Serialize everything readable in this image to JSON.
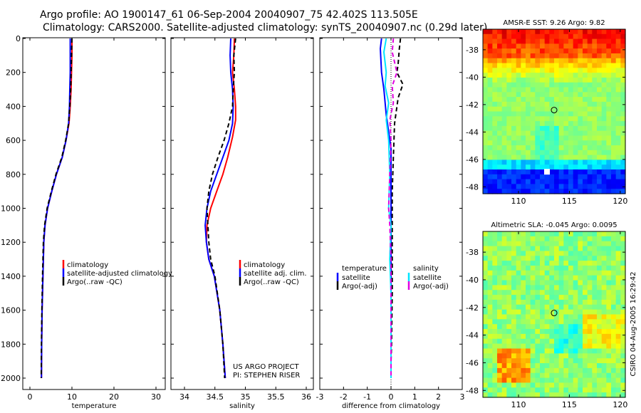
{
  "header": {
    "title_line1": "Argo profile: AO 1900147_61 06-Sep-2004 20040907_75 42.402S 113.505E",
    "title_line2": "Climatology: CARS2000. Satellite-adjusted climatology: synTS_20040907.nc (0.29d later)"
  },
  "side_label": "CSIRO 04-Aug-2005 16:29:42",
  "colors": {
    "red": "#ff0000",
    "blue": "#0000ff",
    "black": "#000000",
    "cyan": "#00e5ff",
    "magenta": "#e000e0"
  },
  "chart_data": [
    {
      "type": "line",
      "xlabel": "temperature",
      "xlim": [
        -1,
        31
      ],
      "ylim": [
        2060,
        0
      ],
      "xticks": [
        0,
        10,
        20,
        30
      ],
      "yticks": [
        0,
        200,
        400,
        600,
        800,
        1000,
        1200,
        1400,
        1600,
        1800,
        2000
      ],
      "legend": [
        "climatology",
        "satellite-adjusted climatology",
        "Argo(..raw -QC)"
      ],
      "series": [
        {
          "name": "climatology",
          "color": "red",
          "dash": false,
          "x": [
            10.0,
            10.0,
            9.9,
            9.8,
            9.6,
            9.3,
            8.6,
            7.7,
            6.3,
            5.2,
            4.2,
            3.6,
            3.3,
            3.1,
            2.9,
            2.8,
            2.75
          ],
          "y": [
            0,
            100,
            200,
            300,
            400,
            500,
            600,
            700,
            800,
            900,
            1000,
            1100,
            1200,
            1400,
            1600,
            1800,
            2000
          ]
        },
        {
          "name": "satellite-adjusted climatology",
          "color": "blue",
          "dash": false,
          "x": [
            9.6,
            9.6,
            9.6,
            9.5,
            9.4,
            9.2,
            8.6,
            7.7,
            6.3,
            5.2,
            4.2,
            3.6,
            3.3,
            3.1,
            2.9,
            2.8,
            2.75
          ],
          "y": [
            0,
            100,
            200,
            300,
            400,
            500,
            600,
            700,
            800,
            900,
            1000,
            1100,
            1200,
            1400,
            1600,
            1800,
            2000
          ]
        },
        {
          "name": "Argo(..raw -QC)",
          "color": "black",
          "dash": true,
          "x": [
            10.0,
            9.9,
            9.8,
            9.7,
            9.5,
            9.2,
            8.5,
            7.6,
            6.2,
            5.1,
            4.1,
            3.5,
            3.2,
            3.0,
            2.85,
            2.75,
            2.7
          ],
          "y": [
            0,
            100,
            200,
            300,
            400,
            500,
            600,
            700,
            800,
            900,
            1000,
            1100,
            1200,
            1400,
            1600,
            1800,
            2000
          ]
        }
      ]
    },
    {
      "type": "line",
      "xlabel": "salinity",
      "xlim": [
        33.85,
        36.1
      ],
      "ylim": [
        2060,
        0
      ],
      "xticks": [
        34,
        34.5,
        35,
        35.5,
        36
      ],
      "yticks": [
        0,
        200,
        400,
        600,
        800,
        1000,
        1200,
        1400,
        1600,
        1800,
        2000
      ],
      "legend": [
        "climatology",
        "satellite adj. clim.",
        "Argo(..raw -QC)"
      ],
      "annotation": [
        "US ARGO PROJECT",
        "PI: STEPHEN RISER"
      ],
      "series": [
        {
          "name": "climatology",
          "color": "red",
          "dash": false,
          "x": [
            34.82,
            34.81,
            34.79,
            34.82,
            34.84,
            34.84,
            34.79,
            34.71,
            34.63,
            34.53,
            34.43,
            34.37,
            34.36,
            34.4,
            34.49,
            34.58,
            34.63,
            34.67
          ],
          "y": [
            0,
            100,
            200,
            300,
            400,
            480,
            580,
            700,
            800,
            900,
            1000,
            1100,
            1200,
            1300,
            1400,
            1600,
            1800,
            2000
          ]
        },
        {
          "name": "satellite adj. clim.",
          "color": "blue",
          "dash": false,
          "x": [
            34.76,
            34.75,
            34.76,
            34.79,
            34.8,
            34.79,
            34.73,
            34.63,
            34.53,
            34.43,
            34.37,
            34.34,
            34.36,
            34.4,
            34.49,
            34.58,
            34.63,
            34.67
          ],
          "y": [
            0,
            100,
            200,
            300,
            400,
            500,
            600,
            700,
            800,
            900,
            1000,
            1100,
            1200,
            1300,
            1400,
            1600,
            1800,
            2000
          ]
        },
        {
          "name": "Argo(..raw -QC)",
          "color": "black",
          "dash": true,
          "x": [
            34.84,
            34.81,
            34.82,
            34.8,
            34.79,
            34.73,
            34.65,
            34.55,
            34.46,
            34.4,
            34.37,
            34.4,
            34.43,
            34.5,
            34.58,
            34.63,
            34.66
          ],
          "y": [
            0,
            100,
            200,
            300,
            400,
            500,
            600,
            700,
            800,
            900,
            1000,
            1200,
            1300,
            1400,
            1600,
            1800,
            2000
          ]
        }
      ]
    },
    {
      "type": "line",
      "xlabel": "difference from climatology",
      "xlim": [
        -3,
        3
      ],
      "ylim": [
        2060,
        0
      ],
      "xticks": [
        -3,
        -2,
        -1,
        0,
        1,
        2,
        3
      ],
      "yticks": [
        0,
        200,
        400,
        600,
        800,
        1000,
        1200,
        1400,
        1600,
        1800,
        2000
      ],
      "legend_left_header": "temperature",
      "legend_left": [
        "satellite",
        "Argo(-adj)"
      ],
      "legend_right_header": "salinity",
      "legend_right": [
        "satellite",
        "Argo(-adj)"
      ],
      "series": [
        {
          "name": "temperature satellite",
          "color": "blue",
          "dash": false,
          "x": [
            -0.4,
            -0.45,
            -0.4,
            -0.3,
            -0.2,
            -0.1,
            0,
            0,
            0,
            0,
            0,
            0,
            0,
            0,
            0
          ],
          "y": [
            0,
            60,
            200,
            300,
            450,
            550,
            650,
            800,
            1000,
            1200,
            1400,
            1600,
            1800,
            1900,
            2000
          ]
        },
        {
          "name": "temperature Argo(-adj)",
          "color": "black",
          "dash": true,
          "x": [
            0.4,
            0.35,
            0.3,
            0.25,
            0.5,
            0.3,
            0.15,
            0.1,
            0.05,
            0.05,
            0.05,
            0.05,
            0.03,
            0.02,
            0,
            0
          ],
          "y": [
            0,
            60,
            150,
            200,
            270,
            350,
            500,
            700,
            900,
            1100,
            1300,
            1500,
            1700,
            1800,
            1900,
            2000
          ]
        },
        {
          "name": "salinity satellite",
          "color": "cyan",
          "dash": false,
          "x": [
            -0.2,
            -0.3,
            -0.2,
            -0.25,
            -0.1,
            -0.2,
            -0.1,
            -0.05,
            -0.1,
            0,
            -0.05,
            0,
            0,
            0
          ],
          "y": [
            0,
            80,
            200,
            280,
            380,
            480,
            600,
            800,
            1000,
            1100,
            1300,
            1500,
            1800,
            2000
          ]
        },
        {
          "name": "salinity Argo(-adj)",
          "color": "magenta",
          "dash": true,
          "x": [
            0.1,
            0.05,
            0.25,
            0.05,
            0.1,
            -0.05,
            0,
            -0.05,
            -0.1,
            -0.05,
            0,
            0,
            0,
            0
          ],
          "y": [
            0,
            80,
            200,
            280,
            380,
            480,
            600,
            800,
            1000,
            1100,
            1300,
            1500,
            1800,
            2000
          ]
        }
      ]
    },
    {
      "type": "heatmap",
      "title": "AMSR-E SST: 9.26 Argo: 9.82",
      "xlim": [
        106.5,
        120.5
      ],
      "ylim": [
        -48.5,
        -36.5
      ],
      "xticks": [
        110,
        115,
        120
      ],
      "yticks": [
        -38,
        -40,
        -42,
        -44,
        -46,
        -48
      ],
      "marker": {
        "x": 113.5,
        "y": -42.4
      }
    },
    {
      "type": "heatmap",
      "title": "Altimetric SLA: -0.045 Argo: 0.0095",
      "xlim": [
        106.5,
        120.5
      ],
      "ylim": [
        -48.5,
        -36.5
      ],
      "xticks": [
        110,
        115,
        120
      ],
      "yticks": [
        -38,
        -40,
        -42,
        -44,
        -46,
        -48
      ],
      "marker": {
        "x": 113.5,
        "y": -42.4
      }
    }
  ]
}
